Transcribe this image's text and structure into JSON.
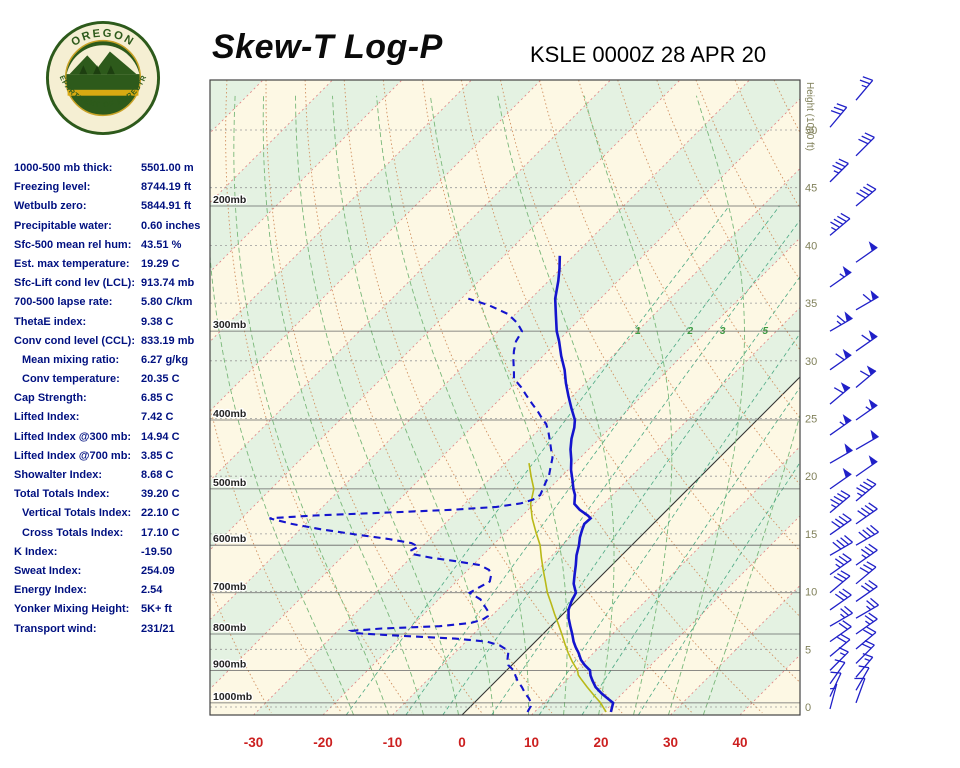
{
  "header": {
    "title": "Skew-T Log-P",
    "station_line": "KSLE 0000Z 28 APR 20",
    "logo_top": "OREGON",
    "logo_bottom": "DEPARTMENT OF FORESTRY"
  },
  "stats": [
    {
      "label": "1000-500 mb thick:",
      "value": "5501.00 m",
      "indent": false
    },
    {
      "label": "Freezing level:",
      "value": "8744.19 ft",
      "indent": false
    },
    {
      "label": "Wetbulb zero:",
      "value": "5844.91 ft",
      "indent": false
    },
    {
      "label": "Precipitable water:",
      "value": "0.60 inches",
      "indent": false
    },
    {
      "label": "Sfc-500 mean rel hum:",
      "value": "43.51 %",
      "indent": false
    },
    {
      "label": "Est. max temperature:",
      "value": "19.29 C",
      "indent": false
    },
    {
      "label": "Sfc-Lift cond lev (LCL):",
      "value": "913.74 mb",
      "indent": false
    },
    {
      "label": "700-500 lapse rate:",
      "value": "5.80 C/km",
      "indent": false
    },
    {
      "label": "ThetaE index:",
      "value": "9.38 C",
      "indent": false
    },
    {
      "label": "Conv cond level (CCL):",
      "value": "833.19 mb",
      "indent": false
    },
    {
      "label": "Mean mixing ratio:",
      "value": "6.27 g/kg",
      "indent": true
    },
    {
      "label": "Conv temperature:",
      "value": "20.35 C",
      "indent": true
    },
    {
      "label": "Cap Strength:",
      "value": "6.85 C",
      "indent": false
    },
    {
      "label": "Lifted Index:",
      "value": "7.42 C",
      "indent": false
    },
    {
      "label": "Lifted Index @300 mb:",
      "value": "14.94 C",
      "indent": false
    },
    {
      "label": "Lifted Index @700 mb:",
      "value": "3.85 C",
      "indent": false
    },
    {
      "label": "Showalter Index:",
      "value": "8.68 C",
      "indent": false
    },
    {
      "label": "Total Totals Index:",
      "value": "39.20 C",
      "indent": false
    },
    {
      "label": "Vertical Totals Index:",
      "value": "22.10 C",
      "indent": true
    },
    {
      "label": "Cross Totals Index:",
      "value": "17.10 C",
      "indent": true
    },
    {
      "label": "K Index:",
      "value": "-19.50",
      "indent": false
    },
    {
      "label": "Sweat Index:",
      "value": "254.09",
      "indent": false
    },
    {
      "label": "Energy Index:",
      "value": "2.54",
      "indent": false
    },
    {
      "label": "Yonker Mixing Height:",
      "value": "5K+ ft",
      "indent": false
    },
    {
      "label": "Transport wind:",
      "value": "231/21",
      "indent": false
    }
  ],
  "chart_data": {
    "type": "line",
    "subtype": "skew-t-log-p",
    "title": "Skew-T Log-P",
    "station": "KSLE",
    "valid_time": "0000Z 28 APR 20",
    "pressure_axis": {
      "labels": [
        "200mb",
        "300mb",
        "400mb",
        "500mb",
        "600mb",
        "700mb",
        "800mb",
        "900mb",
        "1000mb"
      ],
      "top_mb": 133,
      "bottom_mb": 1040
    },
    "temp_axis": {
      "ticks": [
        -30,
        -20,
        -10,
        0,
        10,
        20,
        30,
        40
      ],
      "unit": "C"
    },
    "height_axis": {
      "label": "Height (1000 ft)",
      "ticks": [
        0,
        5,
        10,
        15,
        20,
        25,
        30,
        35,
        40,
        45,
        50
      ]
    },
    "mixing_ratio_lines": [
      1,
      2,
      3,
      5,
      8,
      12,
      20
    ],
    "mixing_ratio_labels": [
      1,
      2,
      3,
      5
    ],
    "moist_adiabats": [
      -15,
      -10,
      -5,
      0,
      5,
      10,
      15,
      20,
      25,
      30,
      35
    ],
    "temperature_profile": [
      [
        1030,
        21
      ],
      [
        1000,
        20
      ],
      [
        985,
        18.5
      ],
      [
        970,
        17
      ],
      [
        950,
        15.2
      ],
      [
        930,
        13.8
      ],
      [
        915,
        12.8
      ],
      [
        900,
        12
      ],
      [
        885,
        10.5
      ],
      [
        870,
        9.2
      ],
      [
        850,
        7.8
      ],
      [
        835,
        6.6
      ],
      [
        820,
        5.5
      ],
      [
        800,
        4.2
      ],
      [
        780,
        2.8
      ],
      [
        760,
        1.4
      ],
      [
        740,
        0.2
      ],
      [
        720,
        -0.6
      ],
      [
        700,
        -1.2
      ],
      [
        680,
        -2.8
      ],
      [
        660,
        -4
      ],
      [
        640,
        -5.2
      ],
      [
        620,
        -6.5
      ],
      [
        600,
        -7.6
      ],
      [
        585,
        -8.6
      ],
      [
        570,
        -9.4
      ],
      [
        560,
        -9.9
      ],
      [
        550,
        -9.8
      ],
      [
        545,
        -10.6
      ],
      [
        535,
        -12.6
      ],
      [
        525,
        -14.2
      ],
      [
        510,
        -15.4
      ],
      [
        500,
        -16.5
      ],
      [
        485,
        -18
      ],
      [
        470,
        -19.6
      ],
      [
        455,
        -21
      ],
      [
        440,
        -22.6
      ],
      [
        425,
        -24
      ],
      [
        410,
        -25.2
      ],
      [
        400,
        -26.2
      ],
      [
        385,
        -28.4
      ],
      [
        370,
        -30.6
      ],
      [
        355,
        -32.8
      ],
      [
        340,
        -34.9
      ],
      [
        325,
        -37.4
      ],
      [
        310,
        -39.8
      ],
      [
        300,
        -41.6
      ],
      [
        285,
        -44
      ],
      [
        270,
        -46.5
      ],
      [
        255,
        -48.6
      ],
      [
        245,
        -50.2
      ],
      [
        235,
        -52
      ]
    ],
    "dewpoint_profile": [
      [
        1030,
        9
      ],
      [
        1010,
        8.6
      ],
      [
        1000,
        8.2
      ],
      [
        985,
        7.2
      ],
      [
        970,
        6
      ],
      [
        950,
        4.6
      ],
      [
        930,
        3
      ],
      [
        915,
        2
      ],
      [
        900,
        1
      ],
      [
        885,
        -0.5
      ],
      [
        870,
        -1.4
      ],
      [
        850,
        -2.3
      ],
      [
        840,
        -3.2
      ],
      [
        830,
        -4.6
      ],
      [
        820,
        -7
      ],
      [
        812,
        -12
      ],
      [
        805,
        -20
      ],
      [
        798,
        -27
      ],
      [
        792,
        -28
      ],
      [
        786,
        -24
      ],
      [
        780,
        -16
      ],
      [
        772,
        -12
      ],
      [
        764,
        -10.8
      ],
      [
        755,
        -10.5
      ],
      [
        745,
        -11
      ],
      [
        730,
        -12.5
      ],
      [
        715,
        -14
      ],
      [
        700,
        -16.5
      ],
      [
        690,
        -16
      ],
      [
        675,
        -15.2
      ],
      [
        660,
        -16
      ],
      [
        650,
        -17
      ],
      [
        640,
        -19
      ],
      [
        632,
        -23
      ],
      [
        625,
        -27
      ],
      [
        617,
        -30.5
      ],
      [
        610,
        -31
      ],
      [
        603,
        -30.5
      ],
      [
        596,
        -32
      ],
      [
        588,
        -36
      ],
      [
        580,
        -41
      ],
      [
        570,
        -47
      ],
      [
        560,
        -52
      ],
      [
        550,
        -56
      ],
      [
        545,
        -50
      ],
      [
        540,
        -40
      ],
      [
        535,
        -31
      ],
      [
        530,
        -25
      ],
      [
        524,
        -22
      ],
      [
        518,
        -20.8
      ],
      [
        510,
        -20.4
      ],
      [
        500,
        -20.9
      ],
      [
        490,
        -21.4
      ],
      [
        478,
        -22
      ],
      [
        465,
        -23
      ],
      [
        452,
        -24
      ],
      [
        440,
        -25.4
      ],
      [
        428,
        -26.8
      ],
      [
        415,
        -28.4
      ],
      [
        405,
        -29.8
      ],
      [
        400,
        -30.8
      ],
      [
        390,
        -32.6
      ],
      [
        380,
        -34.6
      ],
      [
        370,
        -36.6
      ],
      [
        360,
        -38.6
      ],
      [
        350,
        -40.9
      ],
      [
        340,
        -42.2
      ],
      [
        330,
        -43.6
      ],
      [
        320,
        -44.9
      ],
      [
        310,
        -46
      ],
      [
        300,
        -46.6
      ],
      [
        292,
        -48.5
      ],
      [
        284,
        -51
      ],
      [
        276,
        -55
      ],
      [
        270,
        -59
      ]
    ],
    "parcel_profile": [
      [
        1030,
        20.3
      ],
      [
        1000,
        18.2
      ],
      [
        975,
        16.1
      ],
      [
        950,
        14
      ],
      [
        925,
        11.9
      ],
      [
        914,
        11
      ],
      [
        900,
        10.2
      ],
      [
        875,
        8.2
      ],
      [
        850,
        6.3
      ],
      [
        825,
        4.5
      ],
      [
        800,
        2.7
      ],
      [
        775,
        0.8
      ],
      [
        750,
        -1.2
      ],
      [
        725,
        -3.2
      ],
      [
        700,
        -5.3
      ],
      [
        675,
        -7.2
      ],
      [
        650,
        -9.2
      ],
      [
        625,
        -11.2
      ],
      [
        600,
        -13.2
      ],
      [
        575,
        -15.7
      ],
      [
        550,
        -18.2
      ],
      [
        525,
        -20.5
      ],
      [
        500,
        -22.2
      ],
      [
        480,
        -24.4
      ],
      [
        460,
        -26.6
      ]
    ],
    "wind_barbs": [
      [
        1020,
        195,
        5
      ],
      [
        1000,
        200,
        8
      ],
      [
        980,
        205,
        10
      ],
      [
        960,
        210,
        10
      ],
      [
        940,
        215,
        12
      ],
      [
        920,
        220,
        15
      ],
      [
        900,
        225,
        15
      ],
      [
        880,
        225,
        18
      ],
      [
        860,
        230,
        20
      ],
      [
        840,
        230,
        20
      ],
      [
        820,
        235,
        22
      ],
      [
        800,
        235,
        25
      ],
      [
        780,
        240,
        25
      ],
      [
        760,
        240,
        25
      ],
      [
        740,
        235,
        28
      ],
      [
        720,
        235,
        30
      ],
      [
        700,
        230,
        30
      ],
      [
        680,
        230,
        32
      ],
      [
        660,
        235,
        35
      ],
      [
        640,
        235,
        35
      ],
      [
        620,
        240,
        38
      ],
      [
        600,
        240,
        40
      ],
      [
        580,
        235,
        40
      ],
      [
        560,
        235,
        42
      ],
      [
        540,
        230,
        45
      ],
      [
        520,
        230,
        45
      ],
      [
        500,
        235,
        48
      ],
      [
        480,
        235,
        50
      ],
      [
        460,
        240,
        50
      ],
      [
        440,
        240,
        52
      ],
      [
        420,
        235,
        55
      ],
      [
        400,
        235,
        55
      ],
      [
        380,
        230,
        58
      ],
      [
        360,
        230,
        60
      ],
      [
        340,
        235,
        60
      ],
      [
        320,
        235,
        62
      ],
      [
        300,
        240,
        65
      ],
      [
        280,
        240,
        60
      ],
      [
        260,
        235,
        55
      ],
      [
        240,
        235,
        50
      ],
      [
        220,
        230,
        45
      ],
      [
        200,
        230,
        40
      ],
      [
        185,
        225,
        35
      ],
      [
        170,
        225,
        30
      ],
      [
        155,
        220,
        28
      ],
      [
        142,
        220,
        25
      ]
    ],
    "colors": {
      "temperature": "#1414cd",
      "dewpoint": "#1414cd",
      "parcel": "#b9b918",
      "band_cream": "#fdf8e4",
      "band_green": "#e4f2e2",
      "isotherm": "#e08080",
      "zero_isotherm": "#333333",
      "dry_adiabat": "#d09060",
      "moist_adiabat": "#7ab87a",
      "mixing_ratio": "#4aa882",
      "mixing_label": "#3a9a40",
      "height_line": "#999999",
      "pressure_line": "#666666",
      "pressure_label": "#222222",
      "temp_label": "#cc2020",
      "height_label": "#80805a",
      "wind_barb": "#2020c8",
      "border": "#444444"
    }
  }
}
